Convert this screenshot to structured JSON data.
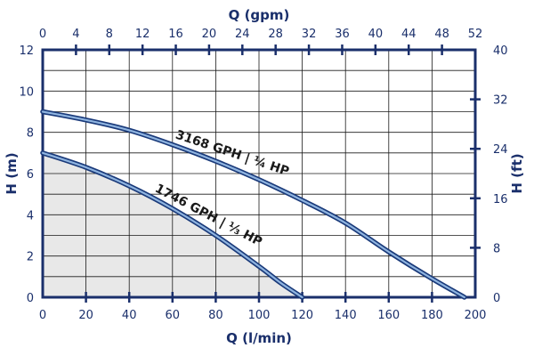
{
  "chart_data": {
    "type": "line",
    "title": "",
    "axes": {
      "x_bottom": {
        "label": "Q (l/min)",
        "ticks": [
          "0",
          "20",
          "40",
          "60",
          "80",
          "100",
          "120",
          "140",
          "160",
          "180",
          "200"
        ],
        "range": [
          0,
          200
        ]
      },
      "x_top": {
        "label": "Q (gpm)",
        "ticks": [
          "0",
          "4",
          "8",
          "12",
          "16",
          "20",
          "24",
          "28",
          "32",
          "36",
          "40",
          "44",
          "48",
          "52"
        ],
        "range": [
          0,
          52
        ]
      },
      "y_left": {
        "label": "H (m)",
        "ticks": [
          "0",
          "2",
          "4",
          "6",
          "8",
          "10",
          "12"
        ],
        "range": [
          0,
          12
        ]
      },
      "y_right": {
        "label": "H (ft)",
        "ticks": [
          "0",
          "8",
          "16",
          "24",
          "32",
          "40"
        ],
        "range": [
          0,
          40
        ]
      }
    },
    "grid": true,
    "series": [
      {
        "name": "3168 GPH | ¼ HP",
        "x": [
          0,
          20,
          40,
          60,
          80,
          100,
          120,
          140,
          160,
          180,
          195
        ],
        "y": [
          9.0,
          8.6,
          8.1,
          7.4,
          6.6,
          5.7,
          4.7,
          3.6,
          2.2,
          0.9,
          0
        ]
      },
      {
        "name": "1746 GPH | ⅓ HP",
        "x": [
          0,
          20,
          40,
          60,
          80,
          100,
          110,
          120
        ],
        "y": [
          7.0,
          6.3,
          5.4,
          4.3,
          3.0,
          1.5,
          0.7,
          0
        ],
        "shaded": true
      }
    ],
    "colors": {
      "frame": "#1a2f6b",
      "curve_outer": "#1a3a7a",
      "curve_inner": "#8fb4e0",
      "shade": "#e8e8e8",
      "grid": "#1a1a1a"
    }
  }
}
